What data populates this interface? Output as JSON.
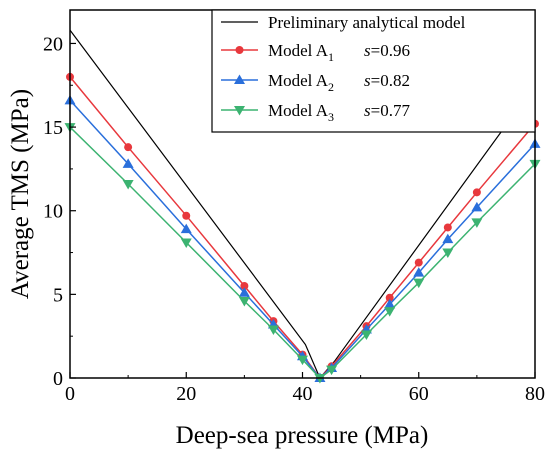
{
  "chart_data": {
    "type": "line",
    "xlabel": "Deep-sea pressure (MPa)",
    "ylabel": "Average TMS (MPa)",
    "xlim": [
      0,
      80
    ],
    "ylim": [
      0,
      22
    ],
    "xticks": [
      0,
      20,
      40,
      60,
      80
    ],
    "yticks": [
      0,
      5,
      10,
      15,
      20
    ],
    "grid": false,
    "legend_position": "top-right",
    "series": [
      {
        "label_main": "Preliminary analytical model",
        "label_sub": "",
        "label_s": "",
        "color": "#000000",
        "marker": "none",
        "x": [
          0,
          40.5,
          43,
          45.5,
          80
        ],
        "y": [
          20.8,
          2.0,
          0.0,
          1.0,
          17.5
        ]
      },
      {
        "label_main": "Model A",
        "label_sub": "1",
        "label_s": "=0.96",
        "color": "#e8383d",
        "marker": "circle",
        "x": [
          0,
          10,
          20,
          30,
          35,
          40,
          43,
          45,
          51,
          55,
          60,
          65,
          70,
          80
        ],
        "y": [
          18.0,
          13.8,
          9.7,
          5.5,
          3.4,
          1.4,
          0.0,
          0.7,
          3.1,
          4.8,
          6.9,
          9.0,
          11.1,
          15.2
        ]
      },
      {
        "label_main": "Model A",
        "label_sub": "2",
        "label_s": "=0.82",
        "color": "#2a6fdb",
        "marker": "triangle-up",
        "x": [
          0,
          10,
          20,
          30,
          35,
          40,
          43,
          45,
          51,
          55,
          60,
          65,
          70,
          80
        ],
        "y": [
          16.6,
          12.8,
          8.9,
          5.1,
          3.2,
          1.3,
          0.0,
          0.6,
          2.9,
          4.4,
          6.3,
          8.3,
          10.2,
          14.0
        ]
      },
      {
        "label_main": "Model A",
        "label_sub": "3",
        "label_s": "=0.77",
        "color": "#3cb371",
        "marker": "triangle-down",
        "x": [
          0,
          10,
          20,
          30,
          35,
          40,
          43,
          45,
          51,
          55,
          60,
          65,
          70,
          80
        ],
        "y": [
          15.0,
          11.6,
          8.1,
          4.6,
          2.9,
          1.1,
          0.0,
          0.5,
          2.6,
          4.0,
          5.7,
          7.5,
          9.3,
          12.8
        ]
      }
    ],
    "legend_s_symbol": "s"
  }
}
